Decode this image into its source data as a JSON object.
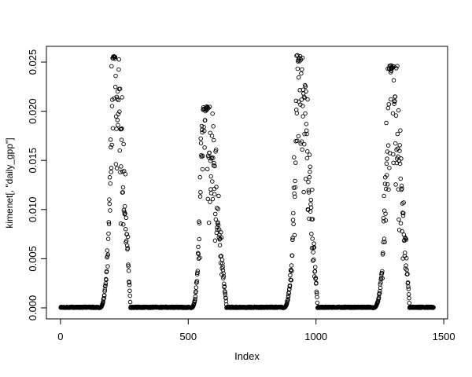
{
  "window": {
    "background_color": "#ffffff",
    "foreground_color": "#000000"
  },
  "chart_data": {
    "type": "scatter",
    "title": "",
    "xlabel": "Index",
    "ylabel": "kimenet[, \"daily_gpp\"]",
    "x_ticks": [
      {
        "value": 0,
        "label": "0"
      },
      {
        "value": 500,
        "label": "500"
      },
      {
        "value": 1000,
        "label": "1000"
      },
      {
        "value": 1500,
        "label": "1500"
      }
    ],
    "y_ticks": [
      {
        "value": 0.0,
        "label": "0.000"
      },
      {
        "value": 0.005,
        "label": "0.005"
      },
      {
        "value": 0.01,
        "label": "0.010"
      },
      {
        "value": 0.015,
        "label": "0.015"
      },
      {
        "value": 0.02,
        "label": "0.020"
      },
      {
        "value": 0.025,
        "label": "0.025"
      }
    ],
    "xlim": [
      -55,
      1515
    ],
    "ylim": [
      -0.00112,
      0.0266
    ],
    "grid": false,
    "legend": null,
    "n_observations": 1460,
    "marker": {
      "shape": "open-circle",
      "color": "#000000",
      "radius_px": 2.3,
      "stroke_width_px": 0.9
    },
    "axis_color": "#000000",
    "description": "Four annual cycles of daily GPP: flat runs at 0 during dormant season, noisy scattered humps during growing seasons",
    "peaks_summary": [
      {
        "x": 208,
        "y": 0.0256
      },
      {
        "x": 556,
        "y": 0.0205
      },
      {
        "x": 930,
        "y": 0.0257
      },
      {
        "x": 1288,
        "y": 0.0247
      }
    ],
    "seasons": [
      {
        "start": 150,
        "end": 274,
        "peak_x": 208,
        "peak_y": 0.0256
      },
      {
        "start": 510,
        "end": 650,
        "peak_x": 556,
        "peak_y": 0.0205
      },
      {
        "start": 870,
        "end": 1006,
        "peak_x": 930,
        "peak_y": 0.0257
      },
      {
        "start": 1222,
        "end": 1366,
        "peak_x": 1288,
        "peak_y": 0.0247
      }
    ],
    "zero_runs": [
      [
        1,
        150
      ],
      [
        274,
        510
      ],
      [
        650,
        870
      ],
      [
        1006,
        1222
      ],
      [
        1366,
        1460
      ]
    ],
    "zero_value": 0.0,
    "scatter_model": {
      "rise_exponent": 3,
      "fall_exponent": 0.9,
      "dense_threshold": 0.0042,
      "dense_noise_min": 0.85,
      "dense_noise_span": 0.3,
      "scatter_noise_min": 0.5,
      "scatter_noise_span": 0.59,
      "zero_jitter": 0.00012,
      "seed": 1337
    }
  }
}
